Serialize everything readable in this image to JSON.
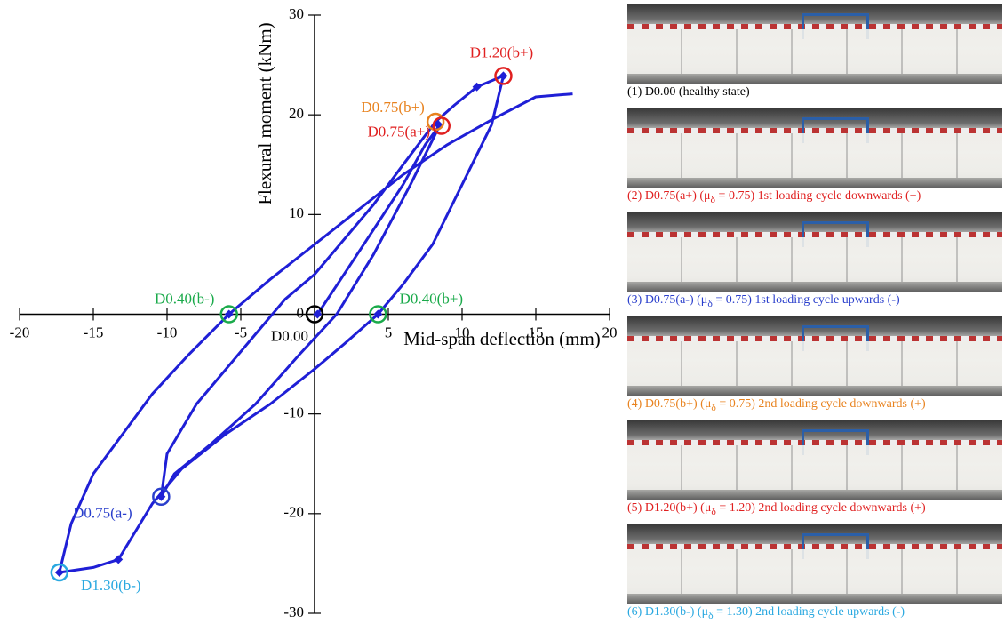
{
  "chart_data": {
    "type": "line",
    "xlabel": "Mid-span deflection (mm)",
    "ylabel": "Flexural moment (kNm)",
    "xlim": [
      -20,
      20
    ],
    "ylim": [
      -30,
      30
    ],
    "xticks": [
      -20,
      -15,
      -10,
      -5,
      5,
      10,
      15,
      20
    ],
    "yticks": [
      -30,
      -20,
      -10,
      0,
      10,
      20,
      30
    ],
    "series": [
      {
        "color": "#1f1fd6",
        "x": [
          0,
          0.2,
          2,
          4,
          6,
          7.5,
          8.5,
          6.5,
          4,
          1.5,
          -1,
          -4,
          -7,
          -9.5,
          -10.4,
          -10,
          -8,
          -6,
          -4,
          -2,
          0,
          2,
          4,
          6,
          8.2,
          9.5,
          11,
          12.8,
          12,
          10,
          8,
          6,
          4.3,
          2,
          0,
          -3,
          -6,
          -9,
          -11,
          -13.3,
          -15,
          -17.3,
          -16.5,
          -15,
          -13,
          -11,
          -8.5,
          -5.8,
          -3,
          0,
          3,
          6,
          9,
          12,
          15,
          17.5
        ],
        "values": [
          0,
          0,
          4,
          8.5,
          13,
          17,
          19,
          13,
          6,
          0,
          -4,
          -9,
          -13,
          -16,
          -18.3,
          -14,
          -9,
          -5.5,
          -2,
          1.5,
          4,
          7.5,
          11,
          15,
          19.3,
          21,
          22.8,
          23.9,
          19,
          13,
          7,
          3,
          0,
          -3,
          -5.5,
          -9,
          -12,
          -15.5,
          -19,
          -24.6,
          -25.4,
          -25.9,
          -21,
          -16,
          -12,
          -8,
          -4,
          0,
          3.5,
          7,
          10.5,
          14,
          17,
          19.5,
          21.8,
          22.1
        ]
      }
    ],
    "points": {
      "x": [
        0.2,
        8.4,
        11,
        12.8,
        -10.4,
        -13.3,
        -17.3,
        4.3,
        -5.8
      ],
      "y": [
        0,
        19,
        22.8,
        23.9,
        -18.3,
        -24.6,
        -25.9,
        0,
        0
      ]
    },
    "annotations": [
      {
        "label": "D1.20(b+)",
        "x": 12.8,
        "y": 23.9,
        "color": "#e02020"
      },
      {
        "label": "D0.75(b+)",
        "x": 8.2,
        "y": 19.3,
        "color": "#e8821e"
      },
      {
        "label": "D0.75(a+)",
        "x": 8.6,
        "y": 18.9,
        "color": "#e02020"
      },
      {
        "label": "D0.40(b-)",
        "x": -5.8,
        "y": 0,
        "color": "#1aaa4a"
      },
      {
        "label": "D0.40(b+)",
        "x": 4.3,
        "y": 0,
        "color": "#1aaa4a"
      },
      {
        "label": "D0.00",
        "x": 0,
        "y": 0,
        "color": "#000000"
      },
      {
        "label": "D0.75(a-)",
        "x": -10.4,
        "y": -18.3,
        "color": "#2a3fcc"
      },
      {
        "label": "D1.30(b-)",
        "x": -17.3,
        "y": -25.9,
        "color": "#29a8e0"
      }
    ]
  },
  "photos": [
    {
      "caption": [
        "(1) D0.00 (healthy state)"
      ],
      "color": "#000000"
    },
    {
      "caption": [
        "(2) D0.75(a+) (μ",
        "δ",
        " = 0.75) 1st loading cycle downwards (+)"
      ],
      "color": "#e02020"
    },
    {
      "caption": [
        "(3) D0.75(a-) (μ",
        "δ",
        " = 0.75) 1st loading cycle upwards (-)"
      ],
      "color": "#2a3fcc"
    },
    {
      "caption": [
        "(4) D0.75(b+) (μ",
        "δ",
        " = 0.75) 2nd loading cycle downwards (+)"
      ],
      "color": "#e8821e"
    },
    {
      "caption": [
        "(5) D1.20(b+) (μ",
        "δ",
        " = 1.20) 2nd loading cycle downwards (+)"
      ],
      "color": "#e02020"
    },
    {
      "caption": [
        "(6) D1.30(b-) (μ",
        "δ",
        " = 1.30) 2nd loading cycle upwards (-)"
      ],
      "color": "#29a8e0"
    }
  ]
}
